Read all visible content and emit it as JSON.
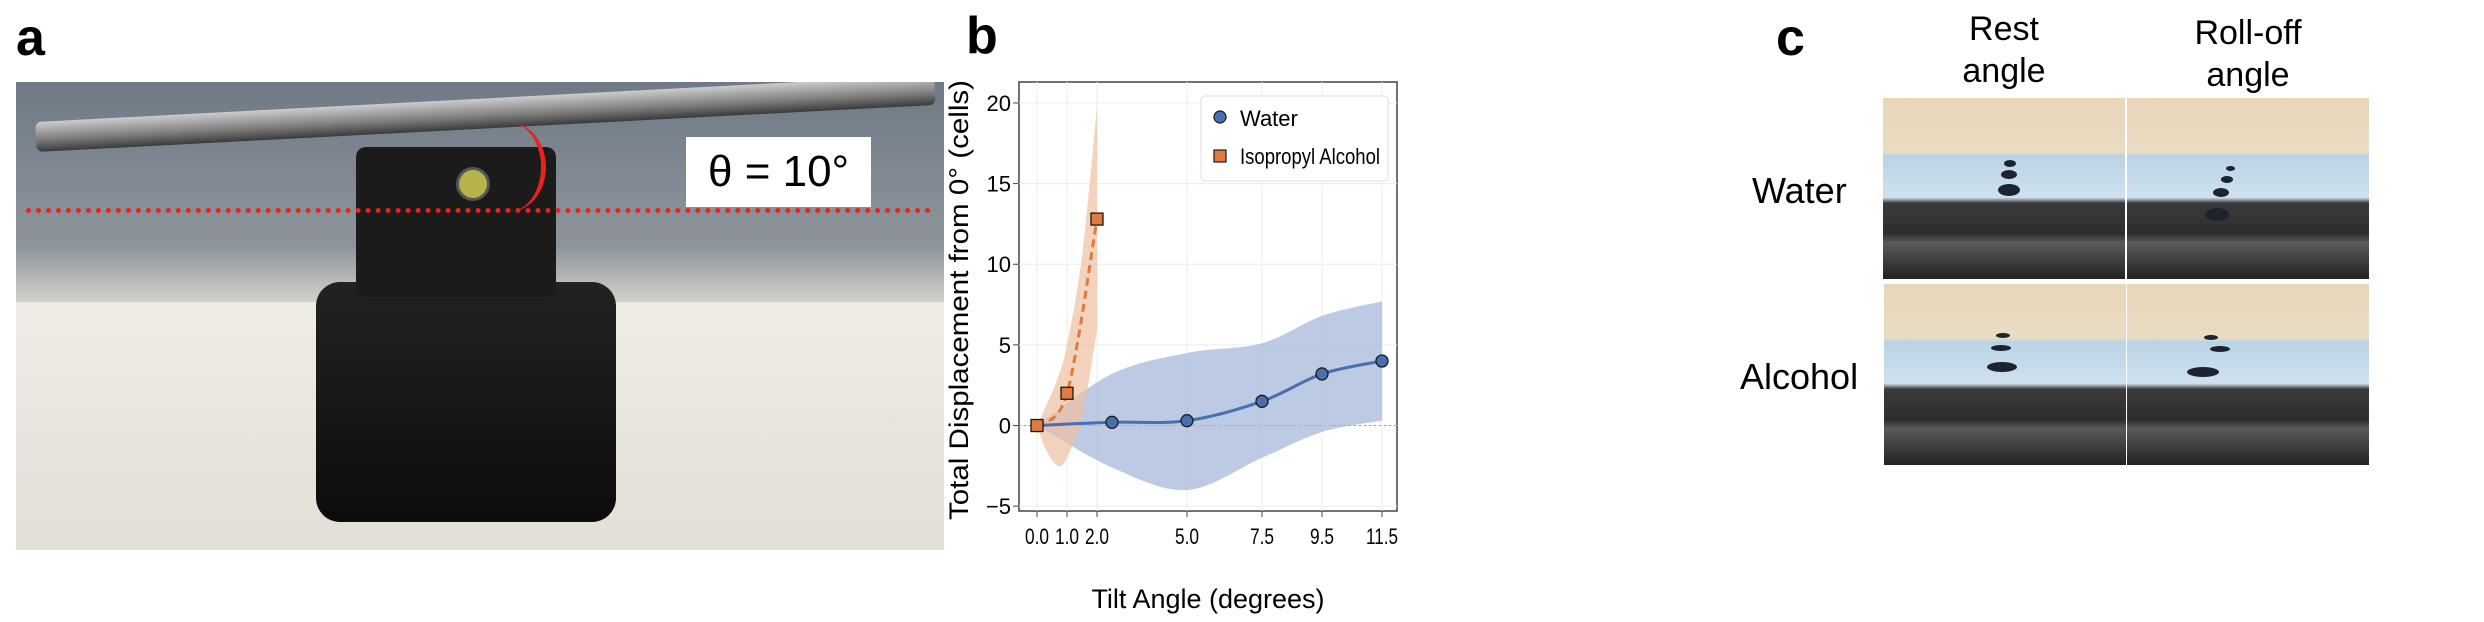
{
  "panels": {
    "a": "a",
    "b": "b",
    "c": "c"
  },
  "panel_a": {
    "angle_label": "θ = 10°"
  },
  "panel_c": {
    "columns": [
      "Rest\nangle",
      "Roll-off\nangle"
    ],
    "rows": [
      "Water",
      "Alcohol"
    ]
  },
  "colors": {
    "water": "#4a6fb0",
    "water_band": "#9fb3d8",
    "alcohol": "#e07a3f",
    "alcohol_band": "#efc0a3"
  },
  "chart_data": {
    "type": "line",
    "xlabel": "Tilt Angle (degrees)",
    "ylabel": "Total Displacement from 0° (cells)",
    "xlim": [
      -0.6,
      12.0
    ],
    "ylim": [
      -5.3,
      21.3
    ],
    "xticks": [
      0.0,
      1.0,
      2.0,
      5.0,
      7.5,
      9.5,
      11.5
    ],
    "xtick_labels": [
      "0.0",
      "1.0",
      "2.0",
      "5.0",
      "7.5",
      "9.5",
      "11.5"
    ],
    "yticks": [
      -5,
      0,
      5,
      10,
      15,
      20
    ],
    "ytick_labels": [
      "−5",
      "0",
      "5",
      "10",
      "15",
      "20"
    ],
    "grid": true,
    "legend": "top-right",
    "series": [
      {
        "name": "Water",
        "marker": "circle",
        "line": "solid",
        "x": [
          0.0,
          2.5,
          5.0,
          7.5,
          9.5,
          11.5
        ],
        "y": [
          0.0,
          0.2,
          0.3,
          1.5,
          3.2,
          4.0
        ],
        "band": {
          "x": [
            0.0,
            2.5,
            5.0,
            7.5,
            9.5,
            11.5
          ],
          "upper": [
            0.0,
            3.2,
            4.5,
            5.1,
            6.8,
            7.7
          ],
          "lower": [
            0.0,
            -2.6,
            -4.0,
            -2.0,
            -0.4,
            0.3
          ]
        }
      },
      {
        "name": "Isopropyl Alcohol",
        "marker": "square",
        "line": "dashed",
        "x": [
          0.0,
          1.0,
          2.0
        ],
        "y": [
          0.0,
          2.0,
          12.8
        ],
        "band": {
          "x": [
            0.0,
            0.3,
            0.7,
            1.0,
            1.5,
            2.0
          ],
          "upper": [
            0.0,
            1.2,
            3.0,
            5.0,
            10.5,
            19.8
          ],
          "lower": [
            0.0,
            -1.5,
            -2.5,
            -2.0,
            0.5,
            5.9
          ]
        }
      }
    ]
  }
}
